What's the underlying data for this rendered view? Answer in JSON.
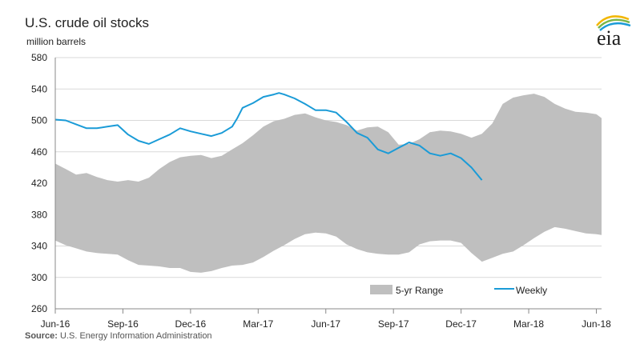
{
  "title": "U.S. crude oil stocks",
  "subtitle": "million barrels",
  "source": {
    "label": "Source:",
    "text": " U.S. Energy Information Administration"
  },
  "logo": {
    "text": "eia",
    "icon": "eia-logo-icon"
  },
  "colors": {
    "range": "#bfbfbf",
    "weekly": "#1a9bd7",
    "grid": "#d9d9d9",
    "axis": "#888888"
  },
  "chart_data": {
    "type": "area",
    "ylabel": "million barrels",
    "ylim": [
      260,
      580
    ],
    "yticks": [
      260,
      300,
      340,
      380,
      420,
      460,
      500,
      540,
      580
    ],
    "xlim": [
      0,
      105
    ],
    "xticks": [
      {
        "x": 0,
        "label": "Jun-16"
      },
      {
        "x": 13,
        "label": "Sep-16"
      },
      {
        "x": 26,
        "label": "Dec-16"
      },
      {
        "x": 39,
        "label": "Mar-17"
      },
      {
        "x": 52,
        "label": "Jun-17"
      },
      {
        "x": 65,
        "label": "Sep-17"
      },
      {
        "x": 78,
        "label": "Dec-17"
      },
      {
        "x": 91,
        "label": "Mar-18"
      },
      {
        "x": 104,
        "label": "Jun-18"
      }
    ],
    "grid": true,
    "legend": {
      "placement": "bottom-right",
      "entries": [
        "5-yr Range",
        "Weekly"
      ]
    },
    "series": [
      {
        "name": "5-yr Range",
        "kind": "band",
        "x": [
          0,
          2,
          4,
          6,
          8,
          10,
          12,
          14,
          16,
          18,
          20,
          22,
          24,
          26,
          28,
          30,
          32,
          34,
          36,
          38,
          40,
          42,
          44,
          46,
          48,
          50,
          52,
          54,
          56,
          58,
          60,
          62,
          64,
          66,
          68,
          70,
          72,
          74,
          76,
          78,
          80,
          82,
          84,
          86,
          88,
          90,
          92,
          94,
          96,
          98,
          100,
          102,
          104,
          105
        ],
        "upper": [
          445,
          438,
          431,
          433,
          428,
          424,
          422,
          424,
          422,
          427,
          438,
          447,
          453,
          455,
          456,
          452,
          455,
          463,
          471,
          481,
          492,
          499,
          502,
          507,
          509,
          504,
          500,
          498,
          494,
          487,
          491,
          492,
          485,
          469,
          470,
          476,
          485,
          487,
          486,
          483,
          478,
          483,
          496,
          521,
          529,
          532,
          534,
          530,
          521,
          515,
          511,
          510,
          508,
          503
        ],
        "lower": [
          347,
          341,
          337,
          333,
          331,
          330,
          329,
          322,
          316,
          315,
          314,
          312,
          312,
          307,
          306,
          308,
          312,
          315,
          316,
          319,
          326,
          334,
          341,
          349,
          355,
          357,
          356,
          352,
          342,
          336,
          332,
          330,
          329,
          329,
          332,
          342,
          346,
          347,
          347,
          344,
          331,
          320,
          325,
          330,
          333,
          341,
          350,
          358,
          364,
          362,
          359,
          356,
          355,
          354
        ]
      },
      {
        "name": "Weekly",
        "kind": "line",
        "x": [
          0,
          2,
          4,
          6,
          8,
          10,
          12,
          14,
          16,
          18,
          20,
          22,
          24,
          26,
          28,
          30,
          32,
          34,
          35,
          36,
          38,
          40,
          42,
          43,
          44,
          46,
          48,
          50,
          52,
          54,
          56,
          58,
          60,
          62,
          64,
          66,
          68,
          70,
          72,
          74,
          76,
          78,
          80,
          82
        ],
        "values": [
          501,
          500,
          495,
          490,
          490,
          492,
          494,
          482,
          474,
          470,
          476,
          482,
          490,
          486,
          483,
          480,
          484,
          492,
          503,
          516,
          522,
          530,
          533,
          535,
          533,
          528,
          521,
          513,
          513,
          510,
          498,
          484,
          478,
          463,
          458,
          465,
          472,
          468,
          458,
          455,
          458,
          452,
          440,
          424
        ]
      }
    ]
  }
}
